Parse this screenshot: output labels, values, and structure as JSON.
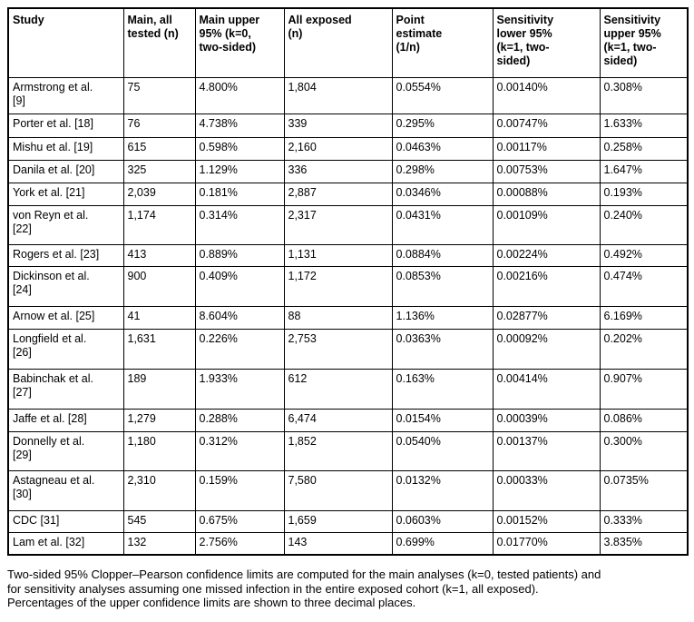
{
  "table": {
    "columns": [
      "Study",
      "Main, all\ntested (n)",
      "Main upper\n95% (k=0,\ntwo-sided)",
      "All exposed\n(n)",
      "Point\nestimate\n(1/n)",
      "Sensitivity\nlower 95%\n(k=1, two-\nsided)",
      "Sensitivity\nupper 95%\n(k=1, two-\nsided)"
    ],
    "rows": [
      {
        "study": "Armstrong et al.\n[9]",
        "main_tested_n": "75",
        "main_upper_95": "4.800%",
        "all_exposed_n": "1,804",
        "point_estimate": "0.0554%",
        "sensitivity_lower_95": "0.00140%",
        "sensitivity_upper_95": "0.308%"
      },
      {
        "study": "Porter et al. [18]",
        "main_tested_n": "76",
        "main_upper_95": "4.738%",
        "all_exposed_n": "339",
        "point_estimate": "0.295%",
        "sensitivity_lower_95": "0.00747%",
        "sensitivity_upper_95": "1.633%"
      },
      {
        "study": "Mishu et al. [19]",
        "main_tested_n": "615",
        "main_upper_95": "0.598%",
        "all_exposed_n": "2,160",
        "point_estimate": "0.0463%",
        "sensitivity_lower_95": "0.00117%",
        "sensitivity_upper_95": "0.258%"
      },
      {
        "study": "Danila et al. [20]",
        "main_tested_n": "325",
        "main_upper_95": "1.129%",
        "all_exposed_n": "336",
        "point_estimate": "0.298%",
        "sensitivity_lower_95": "0.00753%",
        "sensitivity_upper_95": "1.647%"
      },
      {
        "study": "York et al. [21]",
        "main_tested_n": "2,039",
        "main_upper_95": "0.181%",
        "all_exposed_n": "2,887",
        "point_estimate": "0.0346%",
        "sensitivity_lower_95": "0.00088%",
        "sensitivity_upper_95": "0.193%"
      },
      {
        "study": "von Reyn et al.\n[22]",
        "main_tested_n": "1,174",
        "main_upper_95": "0.314%",
        "all_exposed_n": "2,317",
        "point_estimate": "0.0431%",
        "sensitivity_lower_95": "0.00109%",
        "sensitivity_upper_95": "0.240%"
      },
      {
        "study": "Rogers et al. [23]",
        "main_tested_n": "413",
        "main_upper_95": "0.889%",
        "all_exposed_n": "1,131",
        "point_estimate": "0.0884%",
        "sensitivity_lower_95": "0.00224%",
        "sensitivity_upper_95": "0.492%"
      },
      {
        "study": "Dickinson et al.\n[24]",
        "main_tested_n": "900",
        "main_upper_95": "0.409%",
        "all_exposed_n": "1,172",
        "point_estimate": "0.0853%",
        "sensitivity_lower_95": "0.00216%",
        "sensitivity_upper_95": "0.474%"
      },
      {
        "study": "Arnow et al. [25]",
        "main_tested_n": "41",
        "main_upper_95": "8.604%",
        "all_exposed_n": "88",
        "point_estimate": "1.136%",
        "sensitivity_lower_95": "0.02877%",
        "sensitivity_upper_95": "6.169%"
      },
      {
        "study": "Longfield et al.\n[26]",
        "main_tested_n": "1,631",
        "main_upper_95": "0.226%",
        "all_exposed_n": "2,753",
        "point_estimate": "0.0363%",
        "sensitivity_lower_95": "0.00092%",
        "sensitivity_upper_95": "0.202%"
      },
      {
        "study": "Babinchak et al.\n[27]",
        "main_tested_n": "189",
        "main_upper_95": "1.933%",
        "all_exposed_n": "612",
        "point_estimate": "0.163%",
        "sensitivity_lower_95": "0.00414%",
        "sensitivity_upper_95": "0.907%"
      },
      {
        "study": "Jaffe et al. [28]",
        "main_tested_n": "1,279",
        "main_upper_95": "0.288%",
        "all_exposed_n": "6,474",
        "point_estimate": "0.0154%",
        "sensitivity_lower_95": "0.00039%",
        "sensitivity_upper_95": "0.086%"
      },
      {
        "study": "Donnelly et al.\n[29]",
        "main_tested_n": "1,180",
        "main_upper_95": "0.312%",
        "all_exposed_n": "1,852",
        "point_estimate": "0.0540%",
        "sensitivity_lower_95": "0.00137%",
        "sensitivity_upper_95": "0.300%"
      },
      {
        "study": "Astagneau et al.\n[30]",
        "main_tested_n": "2,310",
        "main_upper_95": "0.159%",
        "all_exposed_n": "7,580",
        "point_estimate": "0.0132%",
        "sensitivity_lower_95": "0.00033%",
        "sensitivity_upper_95": "0.0735%"
      },
      {
        "study": "CDC [31]",
        "main_tested_n": "545",
        "main_upper_95": "0.675%",
        "all_exposed_n": "1,659",
        "point_estimate": "0.0603%",
        "sensitivity_lower_95": "0.00152%",
        "sensitivity_upper_95": "0.333%"
      },
      {
        "study": "Lam et al. [32]",
        "main_tested_n": "132",
        "main_upper_95": "2.756%",
        "all_exposed_n": "143",
        "point_estimate": "0.699%",
        "sensitivity_lower_95": "0.01770%",
        "sensitivity_upper_95": "3.835%"
      }
    ]
  },
  "footnote": {
    "lines": [
      "Two-sided 95% Clopper–Pearson confidence limits are computed for the main analyses (k=0, tested patients) and",
      "for sensitivity analyses assuming one missed infection in the entire exposed cohort (k=1, all exposed).",
      "Percentages of the upper confidence limits are shown to three decimal places."
    ]
  },
  "colors": {
    "text": "#000000",
    "border": "#000000",
    "background": "#ffffff"
  }
}
